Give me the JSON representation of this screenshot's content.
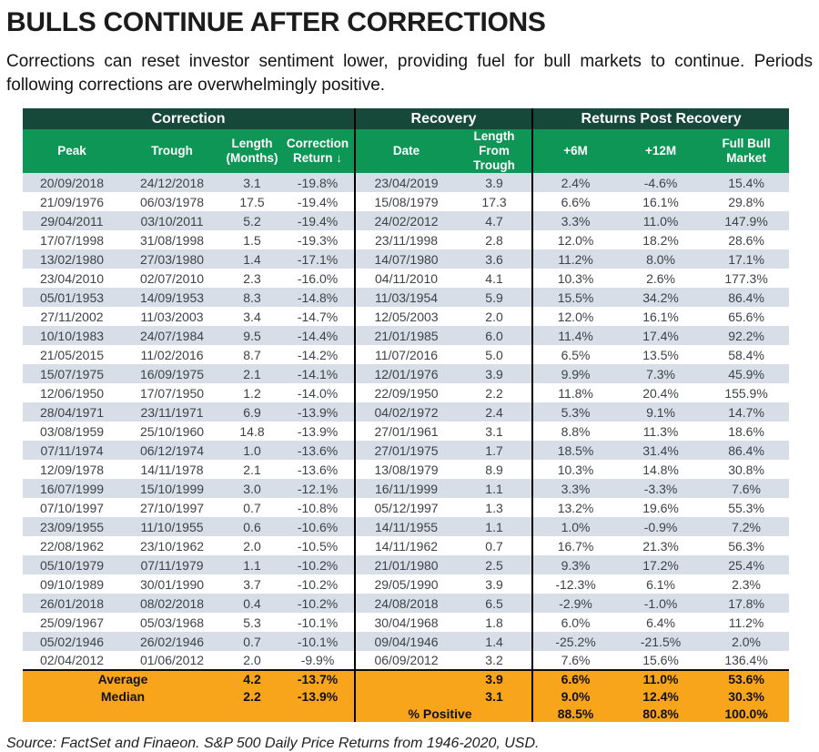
{
  "page": {
    "title": "BULLS CONTINUE AFTER CORRECTIONS",
    "subtitle": "Corrections can reset investor sentiment lower, providing fuel for bull markets to continue. Periods following corrections are overwhelmingly positive.",
    "source": "Source: FactSet and Finaeon. S&P 500 Daily Price Returns from 1946-2020, USD."
  },
  "colors": {
    "group_header_bg": "#17493B",
    "column_header_bg": "#0D9655",
    "row_stripe": "#D7DEE8",
    "summary_bg": "#F9A51B",
    "divider": "#000000"
  },
  "chart_data": {
    "type": "table",
    "title": "BULLS CONTINUE AFTER CORRECTIONS",
    "group_headers": [
      {
        "label": "Correction",
        "span": 4
      },
      {
        "label": "Recovery",
        "span": 2
      },
      {
        "label": "Returns Post Recovery",
        "span": 3
      }
    ],
    "columns": [
      "Peak",
      "Trough",
      "Length (Months)",
      "Correction Return ↓",
      "Date",
      "Length From Trough",
      "+6M",
      "+12M",
      "Full Bull Market"
    ],
    "rows": [
      [
        "20/09/2018",
        "24/12/2018",
        "3.1",
        "-19.8%",
        "23/04/2019",
        "3.9",
        "2.4%",
        "-4.6%",
        "15.4%"
      ],
      [
        "21/09/1976",
        "06/03/1978",
        "17.5",
        "-19.4%",
        "15/08/1979",
        "17.3",
        "6.6%",
        "16.1%",
        "29.8%"
      ],
      [
        "29/04/2011",
        "03/10/2011",
        "5.2",
        "-19.4%",
        "24/02/2012",
        "4.7",
        "3.3%",
        "11.0%",
        "147.9%"
      ],
      [
        "17/07/1998",
        "31/08/1998",
        "1.5",
        "-19.3%",
        "23/11/1998",
        "2.8",
        "12.0%",
        "18.2%",
        "28.6%"
      ],
      [
        "13/02/1980",
        "27/03/1980",
        "1.4",
        "-17.1%",
        "14/07/1980",
        "3.6",
        "11.2%",
        "8.0%",
        "17.1%"
      ],
      [
        "23/04/2010",
        "02/07/2010",
        "2.3",
        "-16.0%",
        "04/11/2010",
        "4.1",
        "10.3%",
        "2.6%",
        "177.3%"
      ],
      [
        "05/01/1953",
        "14/09/1953",
        "8.3",
        "-14.8%",
        "11/03/1954",
        "5.9",
        "15.5%",
        "34.2%",
        "86.4%"
      ],
      [
        "27/11/2002",
        "11/03/2003",
        "3.4",
        "-14.7%",
        "12/05/2003",
        "2.0",
        "12.0%",
        "16.1%",
        "65.6%"
      ],
      [
        "10/10/1983",
        "24/07/1984",
        "9.5",
        "-14.4%",
        "21/01/1985",
        "6.0",
        "11.4%",
        "17.4%",
        "92.2%"
      ],
      [
        "21/05/2015",
        "11/02/2016",
        "8.7",
        "-14.2%",
        "11/07/2016",
        "5.0",
        "6.5%",
        "13.5%",
        "58.4%"
      ],
      [
        "15/07/1975",
        "16/09/1975",
        "2.1",
        "-14.1%",
        "12/01/1976",
        "3.9",
        "9.9%",
        "7.3%",
        "45.9%"
      ],
      [
        "12/06/1950",
        "17/07/1950",
        "1.2",
        "-14.0%",
        "22/09/1950",
        "2.2",
        "11.8%",
        "20.4%",
        "155.9%"
      ],
      [
        "28/04/1971",
        "23/11/1971",
        "6.9",
        "-13.9%",
        "04/02/1972",
        "2.4",
        "5.3%",
        "9.1%",
        "14.7%"
      ],
      [
        "03/08/1959",
        "25/10/1960",
        "14.8",
        "-13.9%",
        "27/01/1961",
        "3.1",
        "8.8%",
        "11.3%",
        "18.6%"
      ],
      [
        "07/11/1974",
        "06/12/1974",
        "1.0",
        "-13.6%",
        "27/01/1975",
        "1.7",
        "18.5%",
        "31.4%",
        "86.4%"
      ],
      [
        "12/09/1978",
        "14/11/1978",
        "2.1",
        "-13.6%",
        "13/08/1979",
        "8.9",
        "10.3%",
        "14.8%",
        "30.8%"
      ],
      [
        "16/07/1999",
        "15/10/1999",
        "3.0",
        "-12.1%",
        "16/11/1999",
        "1.1",
        "3.3%",
        "-3.3%",
        "7.6%"
      ],
      [
        "07/10/1997",
        "27/10/1997",
        "0.7",
        "-10.8%",
        "05/12/1997",
        "1.3",
        "13.2%",
        "19.6%",
        "55.3%"
      ],
      [
        "23/09/1955",
        "11/10/1955",
        "0.6",
        "-10.6%",
        "14/11/1955",
        "1.1",
        "1.0%",
        "-0.9%",
        "7.2%"
      ],
      [
        "22/08/1962",
        "23/10/1962",
        "2.0",
        "-10.5%",
        "14/11/1962",
        "0.7",
        "16.7%",
        "21.3%",
        "56.3%"
      ],
      [
        "05/10/1979",
        "07/11/1979",
        "1.1",
        "-10.2%",
        "21/01/1980",
        "2.5",
        "9.3%",
        "17.2%",
        "25.4%"
      ],
      [
        "09/10/1989",
        "30/01/1990",
        "3.7",
        "-10.2%",
        "29/05/1990",
        "3.9",
        "-12.3%",
        "6.1%",
        "2.3%"
      ],
      [
        "26/01/2018",
        "08/02/2018",
        "0.4",
        "-10.2%",
        "24/08/2018",
        "6.5",
        "-2.9%",
        "-1.0%",
        "17.8%"
      ],
      [
        "25/09/1967",
        "05/03/1968",
        "5.3",
        "-10.1%",
        "30/04/1968",
        "1.8",
        "6.0%",
        "6.4%",
        "11.2%"
      ],
      [
        "05/02/1946",
        "26/02/1946",
        "0.7",
        "-10.1%",
        "09/04/1946",
        "1.4",
        "-25.2%",
        "-21.5%",
        "2.0%"
      ],
      [
        "02/04/2012",
        "01/06/2012",
        "2.0",
        "-9.9%",
        "06/09/2012",
        "3.2",
        "7.6%",
        "15.6%",
        "136.4%"
      ]
    ],
    "summary_rows": [
      {
        "label": "Average",
        "length_months": "4.2",
        "correction_return": "-13.7%",
        "length_from_trough": "3.9",
        "plus6m": "6.6%",
        "plus12m": "11.0%",
        "full_bull": "53.6%"
      },
      {
        "label": "Median",
        "length_months": "2.2",
        "correction_return": "-13.9%",
        "length_from_trough": "3.1",
        "plus6m": "9.0%",
        "plus12m": "12.4%",
        "full_bull": "30.3%"
      },
      {
        "label": "% Positive",
        "plus6m": "88.5%",
        "plus12m": "80.8%",
        "full_bull": "100.0%"
      }
    ]
  }
}
